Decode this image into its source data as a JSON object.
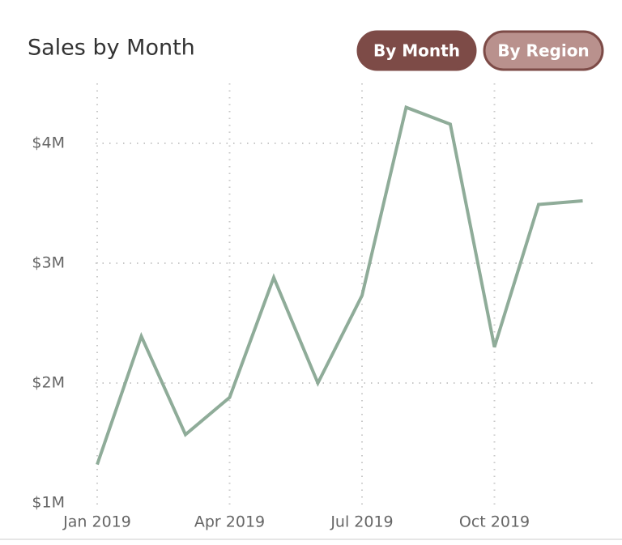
{
  "chart_data": {
    "type": "line",
    "title": "Sales by Month",
    "categories": [
      "Jan 2019",
      null,
      null,
      "Apr 2019",
      null,
      null,
      "Jul 2019",
      null,
      null,
      "Oct 2019",
      null,
      null
    ],
    "values": [
      1320000,
      2390000,
      1570000,
      1880000,
      2880000,
      2000000,
      2730000,
      4300000,
      4160000,
      2300000,
      3490000,
      3520000
    ],
    "color": "#8fac99",
    "ylim": [
      1000000,
      4500000
    ],
    "yticks": [
      {
        "value": 1000000,
        "label": "$1M"
      },
      {
        "value": 2000000,
        "label": "$2M"
      },
      {
        "value": 3000000,
        "label": "$3M"
      },
      {
        "value": 4000000,
        "label": "$4M"
      }
    ],
    "grid": true
  },
  "buttons": [
    {
      "label": "By Month",
      "active": true
    },
    {
      "label": "By Region",
      "active": false
    }
  ]
}
